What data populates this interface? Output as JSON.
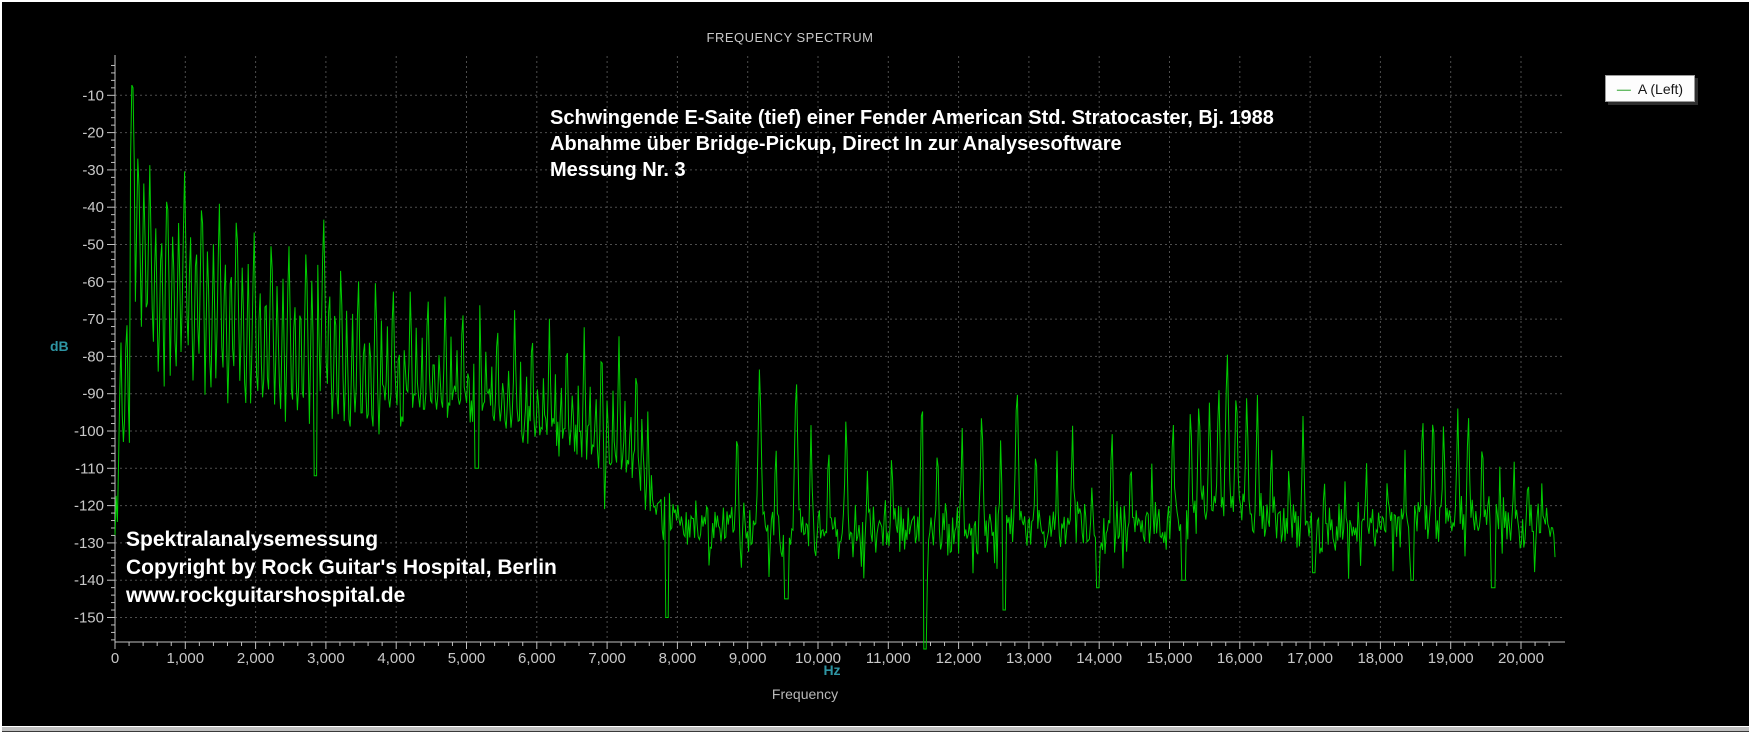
{
  "title": "FREQUENCY SPECTRUM",
  "legend": {
    "series_label": "A (Left)"
  },
  "annotations": {
    "top": [
      "Schwingende E-Saite (tief) einer Fender American Std. Stratocaster, Bj. 1988",
      "Abnahme über Bridge-Pickup, Direct In zur Analysesoftware",
      "Messung Nr. 3"
    ],
    "bottom": [
      "Spektralanalysemessung",
      "Copyright by Rock Guitar's Hospital, Berlin",
      "www.rockguitarshospital.de"
    ]
  },
  "axes": {
    "y": {
      "unit": "dB"
    },
    "x": {
      "unit": "Hz",
      "label": "Frequency"
    }
  },
  "colors": {
    "trace": "#00cc00",
    "grid": "#4d4d4d",
    "axis": "#c0c0c0",
    "tick_label": "#c8c8c8",
    "teal_unit": "#2e95a3",
    "legend_dash": "#66bb66"
  },
  "chart_data": {
    "type": "line",
    "title": "FREQUENCY SPECTRUM",
    "xlabel": "Frequency",
    "x_unit": "Hz",
    "ylabel": "dB",
    "xlim": [
      0,
      20630
    ],
    "ylim": [
      -157,
      0
    ],
    "grid": "dotted every 1000 Hz and every 10 dB",
    "legend_position": "top-right",
    "series": [
      {
        "name": "A (Left)",
        "color": "#00cc00"
      }
    ],
    "harmonic_spacing_hz": 82.4,
    "comb_max_hz": 7600,
    "trace_end_hz": 20500,
    "noise_db": 8,
    "x_ticks": [
      [
        0,
        "0"
      ],
      [
        1000,
        "1,000"
      ],
      [
        2000,
        "2,000"
      ],
      [
        3000,
        "3,000"
      ],
      [
        4000,
        "4,000"
      ],
      [
        5000,
        "5,000"
      ],
      [
        6000,
        "6,000"
      ],
      [
        7000,
        "7,000"
      ],
      [
        8000,
        "8,000"
      ],
      [
        9000,
        "9,000"
      ],
      [
        10000,
        "10,000"
      ],
      [
        11000,
        "11,000"
      ],
      [
        12000,
        "12,000"
      ],
      [
        13000,
        "13,000"
      ],
      [
        14000,
        "14,000"
      ],
      [
        15000,
        "15,000"
      ],
      [
        16000,
        "16,000"
      ],
      [
        17000,
        "17,000"
      ],
      [
        18000,
        "18,000"
      ],
      [
        19000,
        "19,000"
      ],
      [
        20000,
        "20,000"
      ]
    ],
    "y_ticks": [
      [
        -10,
        "-10"
      ],
      [
        -20,
        "-20"
      ],
      [
        -30,
        "-30"
      ],
      [
        -40,
        "-40"
      ],
      [
        -50,
        "-50"
      ],
      [
        -60,
        "-60"
      ],
      [
        -70,
        "-70"
      ],
      [
        -80,
        "-80"
      ],
      [
        -90,
        "-90"
      ],
      [
        -100,
        "-100"
      ],
      [
        -110,
        "-110"
      ],
      [
        -120,
        "-120"
      ],
      [
        -130,
        "-130"
      ],
      [
        -140,
        "-140"
      ],
      [
        -150,
        "-150"
      ]
    ],
    "peak_envelope": [
      [
        82,
        -60
      ],
      [
        165,
        -52
      ],
      [
        247,
        2
      ],
      [
        494,
        -28
      ],
      [
        741,
        -30
      ],
      [
        988,
        -29
      ],
      [
        1235,
        -33
      ],
      [
        1482,
        -37
      ],
      [
        1729,
        -37
      ],
      [
        1976,
        -44
      ],
      [
        2223,
        -44
      ],
      [
        2470,
        -47
      ],
      [
        2717,
        -47
      ],
      [
        2964,
        -39
      ],
      [
        3211,
        -52
      ],
      [
        3458,
        -55
      ],
      [
        3705,
        -56
      ],
      [
        3952,
        -57
      ],
      [
        4199,
        -59
      ],
      [
        4446,
        -59
      ],
      [
        4693,
        -61
      ],
      [
        4940,
        -62
      ],
      [
        5187,
        -64
      ],
      [
        5434,
        -66
      ],
      [
        5681,
        -66
      ],
      [
        5928,
        -68
      ],
      [
        6175,
        -69
      ],
      [
        6422,
        -70
      ],
      [
        6669,
        -72
      ],
      [
        6916,
        -72
      ],
      [
        7163,
        -74
      ],
      [
        7410,
        -77
      ],
      [
        7600,
        -80
      ]
    ],
    "floor_envelope": [
      [
        0,
        -128
      ],
      [
        100,
        -105
      ],
      [
        300,
        -97
      ],
      [
        600,
        -92
      ],
      [
        1000,
        -90
      ],
      [
        1500,
        -92
      ],
      [
        2000,
        -90
      ],
      [
        2500,
        -95
      ],
      [
        3000,
        -97
      ],
      [
        3500,
        -95
      ],
      [
        4000,
        -94
      ],
      [
        4500,
        -92
      ],
      [
        5000,
        -92
      ],
      [
        5500,
        -97
      ],
      [
        6000,
        -100
      ],
      [
        6500,
        -103
      ],
      [
        7000,
        -107
      ],
      [
        7400,
        -112
      ],
      [
        7700,
        -120
      ],
      [
        8000,
        -124
      ],
      [
        9000,
        -126
      ],
      [
        10000,
        -127
      ],
      [
        11000,
        -126
      ],
      [
        12000,
        -127
      ],
      [
        13000,
        -126
      ],
      [
        14000,
        -126
      ],
      [
        15000,
        -124
      ],
      [
        15800,
        -121
      ],
      [
        16500,
        -124
      ],
      [
        17000,
        -126
      ],
      [
        18000,
        -125
      ],
      [
        19000,
        -123
      ],
      [
        20000,
        -125
      ],
      [
        20500,
        -126
      ]
    ],
    "spikes": [
      [
        8850,
        -95
      ],
      [
        9170,
        -80
      ],
      [
        9400,
        -100
      ],
      [
        9690,
        -82
      ],
      [
        9900,
        -98
      ],
      [
        10150,
        -100
      ],
      [
        10400,
        -93
      ],
      [
        10700,
        -108
      ],
      [
        11050,
        -102
      ],
      [
        11480,
        -87
      ],
      [
        11700,
        -100
      ],
      [
        12050,
        -98
      ],
      [
        12330,
        -91
      ],
      [
        12600,
        -100
      ],
      [
        12830,
        -84
      ],
      [
        13100,
        -100
      ],
      [
        13400,
        -105
      ],
      [
        13620,
        -97
      ],
      [
        13900,
        -110
      ],
      [
        14180,
        -96
      ],
      [
        14450,
        -103
      ],
      [
        14750,
        -107
      ],
      [
        15050,
        -93
      ],
      [
        15300,
        -90
      ],
      [
        15420,
        -88
      ],
      [
        15570,
        -90
      ],
      [
        15700,
        -85
      ],
      [
        15820,
        -76
      ],
      [
        15950,
        -85
      ],
      [
        16100,
        -88
      ],
      [
        16250,
        -90
      ],
      [
        16450,
        -100
      ],
      [
        16700,
        -105
      ],
      [
        16900,
        -95
      ],
      [
        17200,
        -108
      ],
      [
        17500,
        -110
      ],
      [
        17800,
        -105
      ],
      [
        18100,
        -108
      ],
      [
        18350,
        -105
      ],
      [
        18600,
        -92
      ],
      [
        18750,
        -91
      ],
      [
        18900,
        -95
      ],
      [
        19100,
        -93
      ],
      [
        19250,
        -92
      ],
      [
        19450,
        -98
      ],
      [
        19700,
        -108
      ],
      [
        19900,
        -105
      ],
      [
        20100,
        -107
      ],
      [
        20300,
        -110
      ]
    ],
    "notches": [
      [
        2850,
        -112
      ],
      [
        5150,
        -110
      ],
      [
        7850,
        -150
      ],
      [
        9550,
        -145
      ],
      [
        11520,
        -160
      ],
      [
        12650,
        -148
      ],
      [
        13980,
        -142
      ],
      [
        15200,
        -140
      ],
      [
        17050,
        -138
      ],
      [
        18450,
        -140
      ],
      [
        19600,
        -142
      ]
    ]
  }
}
